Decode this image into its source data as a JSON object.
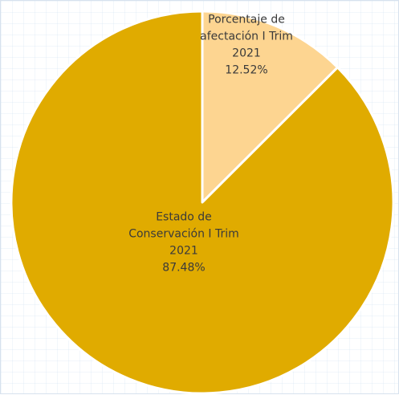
{
  "chart_data": {
    "type": "pie",
    "title": "",
    "slices": [
      {
        "label_lines": [
          "Porcentaje de",
          "afectación I Trim",
          "2021"
        ],
        "value_label": "12.52%",
        "value": 12.52,
        "color": "#fdd591"
      },
      {
        "label_lines": [
          "Estado de",
          "Conservación I Trim",
          "2021"
        ],
        "value_label": "87.48%",
        "value": 87.48,
        "color": "#e0ab00"
      }
    ],
    "start_angle_deg": 0,
    "direction": "clockwise",
    "slice_border_color": "#ffffff",
    "legend": "none"
  }
}
